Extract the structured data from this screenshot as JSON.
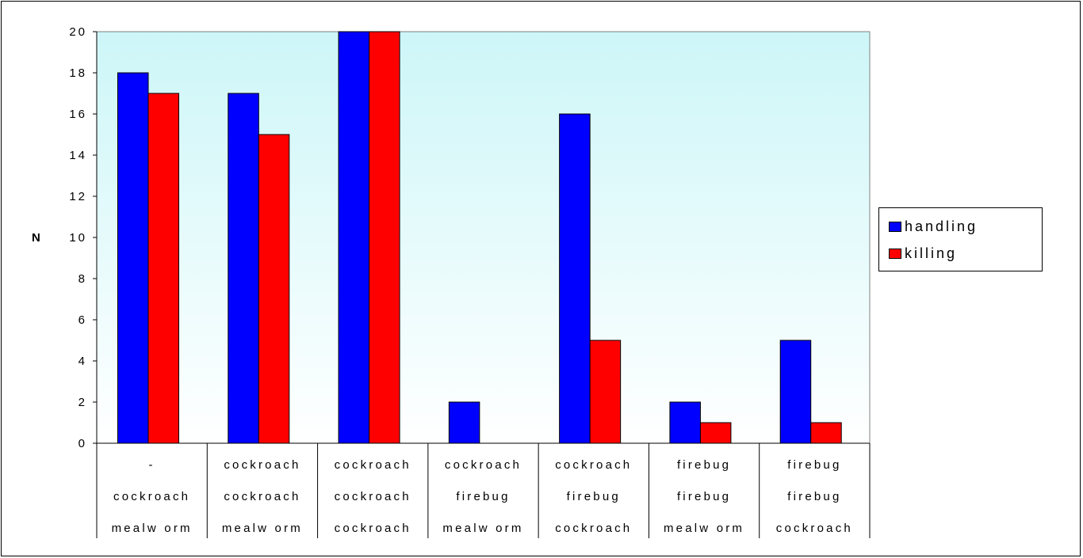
{
  "chart_data": {
    "type": "bar",
    "title": "",
    "xlabel": "",
    "ylabel": "N",
    "ylim": [
      0,
      20
    ],
    "yticks": [
      0,
      2,
      4,
      6,
      8,
      10,
      12,
      14,
      16,
      18,
      20
    ],
    "ytick_labels": [
      "0",
      "2",
      "4",
      "6",
      "8",
      "10",
      "12",
      "14",
      "16",
      "18",
      "20"
    ],
    "categories": [
      [
        "-",
        "cockroach",
        "mealworm"
      ],
      [
        "cockroach",
        "cockroach",
        "mealworm"
      ],
      [
        "cockroach",
        "cockroach",
        "cockroach"
      ],
      [
        "cockroach",
        "firebug",
        "mealworm"
      ],
      [
        "cockroach",
        "firebug",
        "cockroach"
      ],
      [
        "firebug",
        "firebug",
        "mealworm"
      ],
      [
        "firebug",
        "firebug",
        "cockroach"
      ]
    ],
    "category_labels_display": [
      [
        "-",
        "cockroach",
        "mealw orm"
      ],
      [
        "cockroach",
        "cockroach",
        "mealw orm"
      ],
      [
        "cockroach",
        "cockroach",
        "cockroach"
      ],
      [
        "cockroach",
        "firebug",
        "mealw orm"
      ],
      [
        "cockroach",
        "firebug",
        "cockroach"
      ],
      [
        "firebug",
        "firebug",
        "mealw orm"
      ],
      [
        "firebug",
        "firebug",
        "cockroach"
      ]
    ],
    "series": [
      {
        "name": "handling",
        "color": "#0000FF",
        "values": [
          18,
          17,
          20,
          2,
          16,
          2,
          5
        ]
      },
      {
        "name": "killing",
        "color": "#FF0000",
        "values": [
          17,
          15,
          20,
          0,
          5,
          1,
          1
        ]
      }
    ],
    "grid": false,
    "legend_position": "right",
    "plot_background": "gradient-lightcyan-to-white"
  }
}
